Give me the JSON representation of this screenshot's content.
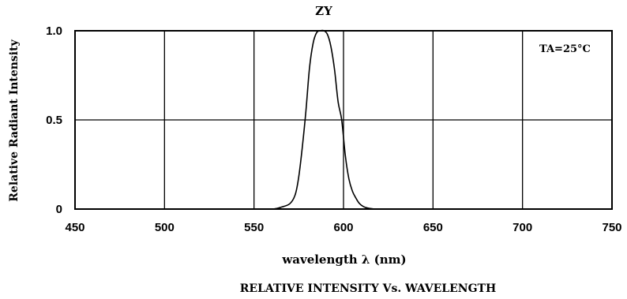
{
  "chart_data": {
    "type": "line",
    "title": "ZY",
    "xlabel": "wavelength  λ (nm)",
    "ylabel": "Relative Radiant Intensity",
    "caption": "RELATIVE INTENSITY Vs. WAVELENGTH",
    "annotation": "TA=25°C",
    "xlim": [
      450,
      750
    ],
    "ylim": [
      0,
      1.0
    ],
    "x_ticks": [
      450,
      500,
      550,
      600,
      650,
      700,
      750
    ],
    "x_tick_labels": [
      "450",
      "500",
      "550",
      "600",
      "650",
      "700",
      "750"
    ],
    "y_ticks": [
      0,
      0.5,
      1.0
    ],
    "y_tick_labels": [
      "0",
      "0.5",
      "1.0"
    ],
    "grid": true,
    "series": [
      {
        "x": [
          561,
          565,
          570,
          573,
          575,
          577,
          579,
          581,
          583,
          585,
          587,
          589,
          591,
          593,
          595,
          597,
          599,
          601,
          603,
          605,
          607,
          609,
          612,
          617
        ],
        "y": [
          0.0,
          0.01,
          0.03,
          0.08,
          0.18,
          0.35,
          0.55,
          0.79,
          0.93,
          0.99,
          1.0,
          1.0,
          0.98,
          0.91,
          0.78,
          0.6,
          0.5,
          0.3,
          0.17,
          0.1,
          0.06,
          0.03,
          0.01,
          0.0
        ],
        "color": "#000000"
      }
    ]
  }
}
